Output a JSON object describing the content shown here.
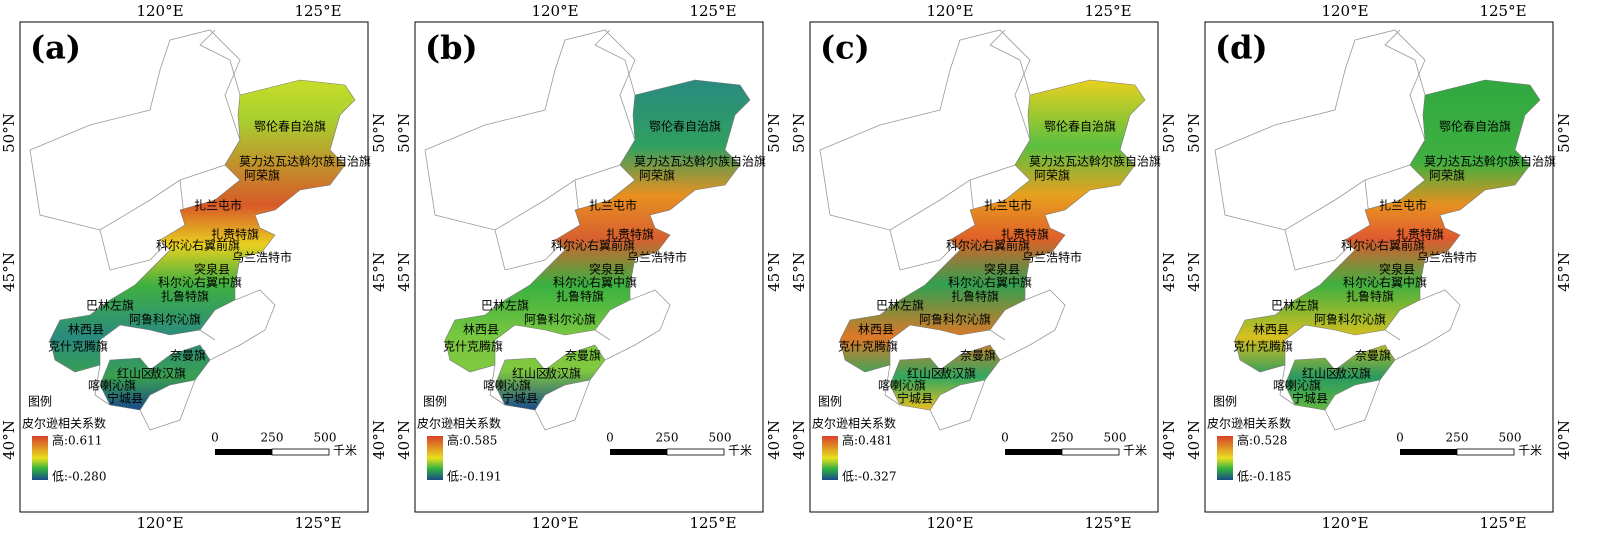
{
  "panels": [
    {
      "label": "(a)",
      "legend_high": "高:0.611",
      "legend_low": "低:-0.280"
    },
    {
      "label": "(b)",
      "legend_high": "高:0.585",
      "legend_low": "低:-0.191"
    },
    {
      "label": "(c)",
      "legend_high": "高:0.481",
      "legend_low": "低:-0.327"
    },
    {
      "label": "(d)",
      "legend_high": "高:0.528",
      "legend_low": "低:-0.185"
    }
  ],
  "lon_labels": [
    "120°E",
    "125°E"
  ],
  "lat_labels": [
    "50°N",
    "45°N",
    "40°N"
  ],
  "regions": [
    "鄂伦春自治旗",
    "莫力达瓦达斡尔族自治旗",
    "阿荣旗",
    "扎兰屯市",
    "扎赉特旗",
    "科尔沁右翼前旗",
    "乌兰浩特市",
    "突泉县",
    "科尔沁右翼中旗",
    "扎鲁特旗",
    "巴林左旗",
    "阿鲁科尔沁旗",
    "林西县",
    "克什克腾旗",
    "奈曼旗",
    "红山区",
    "敖汉旗",
    "喀喇沁旗",
    "宁城县"
  ],
  "legend_title": "图例",
  "legend_subtitle": "皮尔逊相关系数",
  "scale_labels": [
    "0",
    "250",
    "500"
  ],
  "scale_unit": "千米"
}
